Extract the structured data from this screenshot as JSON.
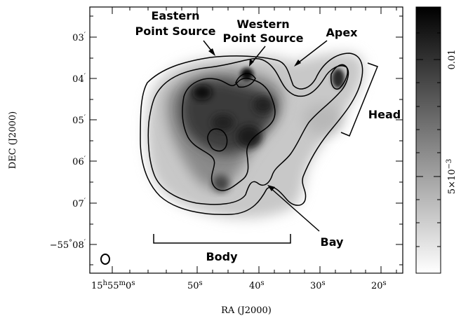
{
  "figure": {
    "x_axis": {
      "title": "RA (J2000)",
      "ticks": [
        {
          "h": "15",
          "m": "55",
          "s": "0",
          "hu": "h",
          "mu": "m",
          "su": "s"
        },
        {
          "s": "50",
          "su": "s"
        },
        {
          "s": "40",
          "su": "s"
        },
        {
          "s": "30",
          "su": "s"
        },
        {
          "s": "20",
          "su": "s"
        }
      ]
    },
    "y_axis": {
      "title": "DEC (J2000)",
      "ticks": [
        {
          "label": "03",
          "unit": "′"
        },
        {
          "label": "04",
          "unit": "′"
        },
        {
          "label": "05",
          "unit": "′"
        },
        {
          "label": "06",
          "unit": "′"
        },
        {
          "label": "07",
          "unit": "′"
        },
        {
          "label": "−55",
          "deg": "°",
          "min": "08",
          "unit": "′"
        }
      ]
    },
    "annotations": {
      "eastern_1": "Eastern",
      "eastern_2": "Point Source",
      "western_1": "Western",
      "western_2": "Point Source",
      "apex": "Apex",
      "head": "Head",
      "bay": "Bay",
      "body": "Body"
    },
    "colorbar": {
      "label_top": "0.01",
      "label_bottom_base": "5×10",
      "label_bottom_exp": "−3"
    }
  }
}
